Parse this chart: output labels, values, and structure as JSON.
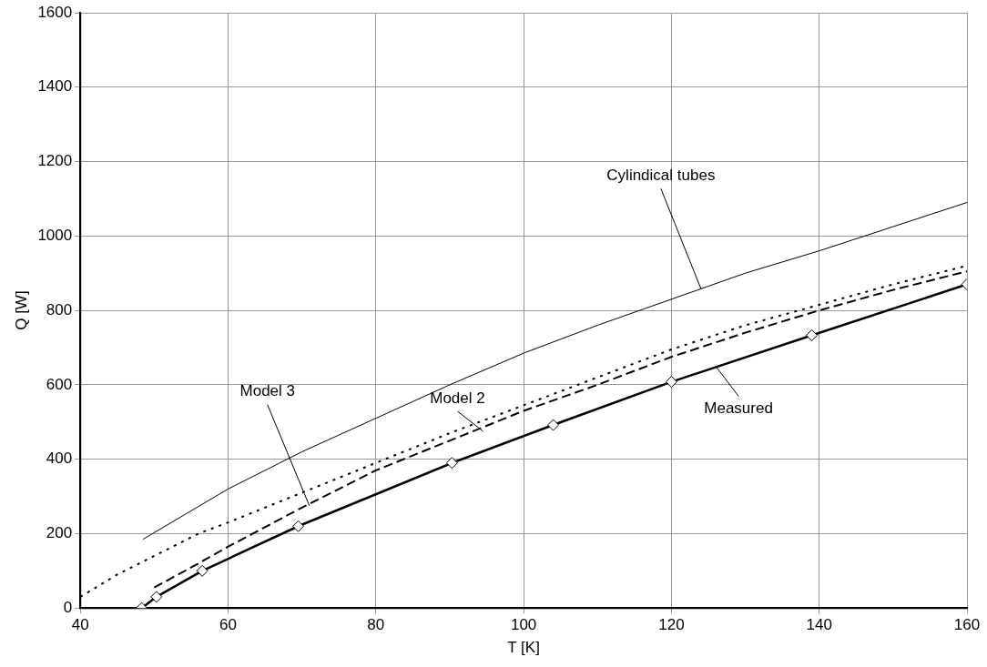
{
  "chart_data": {
    "type": "line",
    "xlabel": "T [K]",
    "ylabel": "Q [W]",
    "xlim": [
      40,
      160
    ],
    "xticks": [
      40,
      60,
      80,
      100,
      120,
      140,
      160
    ],
    "ylim": [
      0,
      1600
    ],
    "yticks": [
      0,
      200,
      400,
      600,
      800,
      1000,
      1200,
      1400,
      1600
    ],
    "grid": true,
    "legend": false,
    "series": [
      {
        "color": "#000000",
        "line_style": "solid",
        "marker": "none",
        "x": [
          48.5,
          60,
          70,
          80,
          90,
          100,
          110,
          120,
          130,
          140,
          150,
          160
        ],
        "values": [
          185,
          320,
          420,
          510,
          600,
          685,
          760,
          830,
          900,
          960,
          1025,
          1090
        ]
      },
      {
        "color": "#000000",
        "line_style": "dotted",
        "marker": "none",
        "x": [
          40,
          45,
          50,
          56,
          60,
          70,
          80,
          90,
          100,
          110,
          120,
          130,
          140,
          150,
          160
        ],
        "values": [
          30,
          90,
          140,
          200,
          230,
          310,
          390,
          470,
          545,
          620,
          695,
          760,
          815,
          870,
          920
        ]
      },
      {
        "color": "#000000",
        "line_style": "dashed",
        "marker": "none",
        "x": [
          50,
          56,
          60,
          70,
          80,
          90,
          100,
          110,
          120,
          130,
          140,
          150,
          160
        ],
        "values": [
          55,
          120,
          165,
          270,
          370,
          450,
          530,
          600,
          675,
          740,
          800,
          855,
          905
        ]
      },
      {
        "color": "#000000",
        "line_style": "solid",
        "marker": "diamond",
        "x": [
          48.3,
          50.3,
          56.5,
          69.5,
          90.3,
          104,
          120,
          139,
          160
        ],
        "values": [
          0,
          30,
          100,
          220,
          390,
          492,
          608,
          733,
          870
        ]
      }
    ],
    "annotations": [
      {
        "text": "Cylindical tubes",
        "x": 124,
        "y": 858
      },
      {
        "text": "Model 2",
        "x": 94.5,
        "y": 475
      },
      {
        "text": "Model 3",
        "x": 71,
        "y": 275
      },
      {
        "text": "Measured",
        "x": 126,
        "y": 650
      }
    ]
  }
}
